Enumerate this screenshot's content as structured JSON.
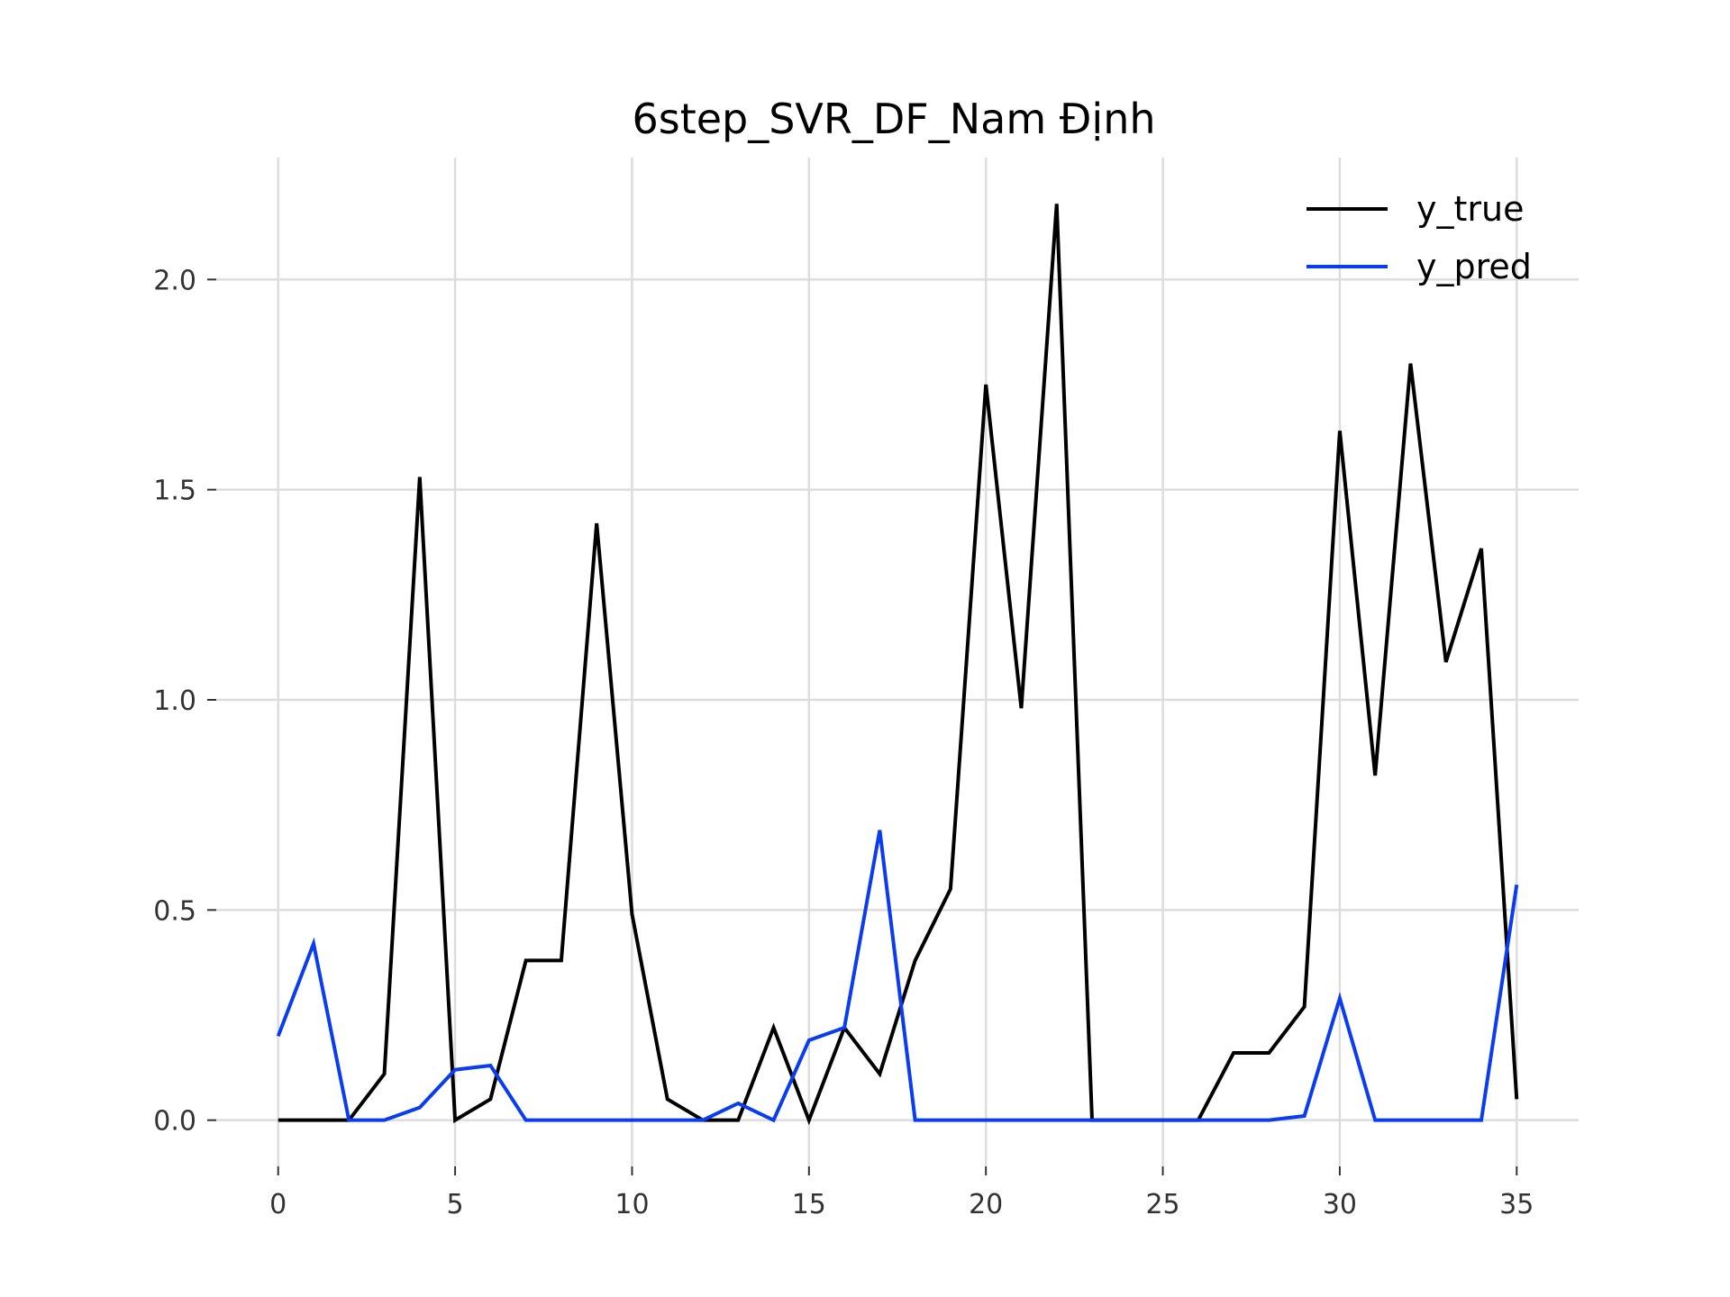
{
  "chart_data": {
    "type": "line",
    "title": "6step_SVR_DF_Nam Định",
    "xlabel": "",
    "ylabel": "",
    "xlim": [
      -1.75,
      36.75
    ],
    "ylim": [
      -0.11,
      2.29
    ],
    "x_ticks": [
      0,
      5,
      10,
      15,
      20,
      25,
      30,
      35
    ],
    "x_tick_labels": [
      "0",
      "5",
      "10",
      "15",
      "20",
      "25",
      "30",
      "35"
    ],
    "y_ticks": [
      0.0,
      0.5,
      1.0,
      1.5,
      2.0
    ],
    "y_tick_labels": [
      "0.0",
      "0.5",
      "1.0",
      "1.5",
      "2.0"
    ],
    "grid": true,
    "legend_position": "top-right",
    "x": [
      0,
      1,
      2,
      3,
      4,
      5,
      6,
      7,
      8,
      9,
      10,
      11,
      12,
      13,
      14,
      15,
      16,
      17,
      18,
      19,
      20,
      21,
      22,
      23,
      24,
      25,
      26,
      27,
      28,
      29,
      30,
      31,
      32,
      33,
      34,
      35
    ],
    "series": [
      {
        "name": "y_true",
        "color": "#000000",
        "values": [
          0.0,
          0.0,
          0.0,
          0.11,
          1.53,
          0.0,
          0.05,
          0.38,
          0.38,
          1.42,
          0.49,
          0.05,
          0.0,
          0.0,
          0.22,
          0.0,
          0.22,
          0.11,
          0.38,
          0.55,
          1.75,
          0.98,
          2.18,
          0.0,
          0.0,
          0.0,
          0.0,
          0.16,
          0.16,
          0.27,
          1.64,
          0.82,
          1.8,
          1.09,
          1.36,
          0.05
        ]
      },
      {
        "name": "y_pred",
        "color": "#0a3cf0",
        "values": [
          0.2,
          0.42,
          0.0,
          0.0,
          0.03,
          0.12,
          0.13,
          0.0,
          0.0,
          0.0,
          0.0,
          0.0,
          0.0,
          0.04,
          0.0,
          0.19,
          0.22,
          0.69,
          0.0,
          0.0,
          0.0,
          0.0,
          0.0,
          0.0,
          0.0,
          0.0,
          0.0,
          0.0,
          0.0,
          0.01,
          0.29,
          0.0,
          0.0,
          0.0,
          0.0,
          0.56
        ]
      }
    ]
  }
}
